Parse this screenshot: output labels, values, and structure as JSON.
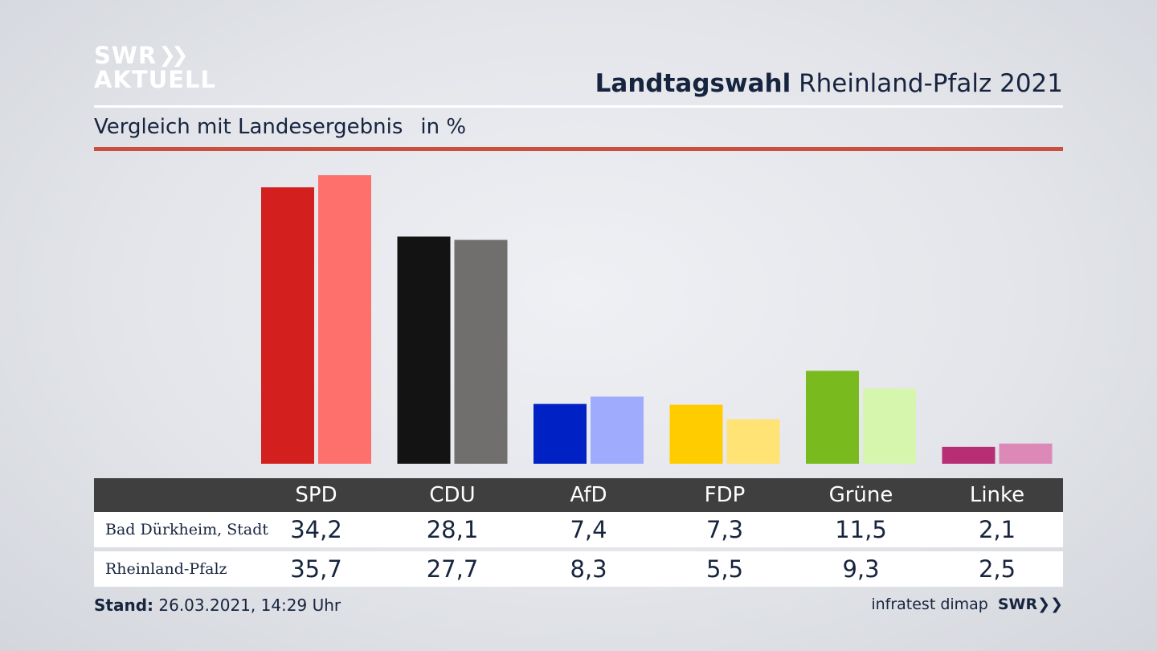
{
  "header": {
    "logo_line1": "SWR",
    "logo_line2": "AKTUELL",
    "title_bold": "Landtagswahl",
    "title_rest": "Rheinland-Pfalz 2021",
    "subtitle": "Vergleich mit Landesergebnis",
    "unit": "in %"
  },
  "colors": {
    "red_rule": "#c9503a",
    "table_header": "#3f3f3f"
  },
  "chart_data": {
    "type": "bar",
    "title": "Landtagswahl Rheinland-Pfalz 2021",
    "subtitle": "Vergleich mit Landesergebnis",
    "ylabel": "in %",
    "categories": [
      "SPD",
      "CDU",
      "AfD",
      "FDP",
      "Grüne",
      "Linke"
    ],
    "series": [
      {
        "name": "Bad Dürkheim, Stadt",
        "values": [
          34.2,
          28.1,
          7.4,
          7.3,
          11.5,
          2.1
        ],
        "labels": [
          "34,2",
          "28,1",
          "7,4",
          "7,3",
          "11,5",
          "2,1"
        ],
        "colors": [
          "#d41f1f",
          "#131313",
          "#0022c4",
          "#ffcc00",
          "#79bb1f",
          "#b72e74"
        ]
      },
      {
        "name": "Rheinland-Pfalz",
        "values": [
          35.7,
          27.7,
          8.3,
          5.5,
          9.3,
          2.5
        ],
        "labels": [
          "35,7",
          "27,7",
          "8,3",
          "5,5",
          "9,3",
          "2,5"
        ],
        "colors": [
          "#fd706c",
          "#706f6d",
          "#9fabfd",
          "#ffe375",
          "#d6f6ae",
          "#dd89b8"
        ]
      }
    ],
    "ylim": [
      0,
      36
    ]
  },
  "footer": {
    "stand_label": "Stand:",
    "stand_value": "26.03.2021, 14:29 Uhr",
    "source": "infratest dimap",
    "brand": "SWR"
  }
}
